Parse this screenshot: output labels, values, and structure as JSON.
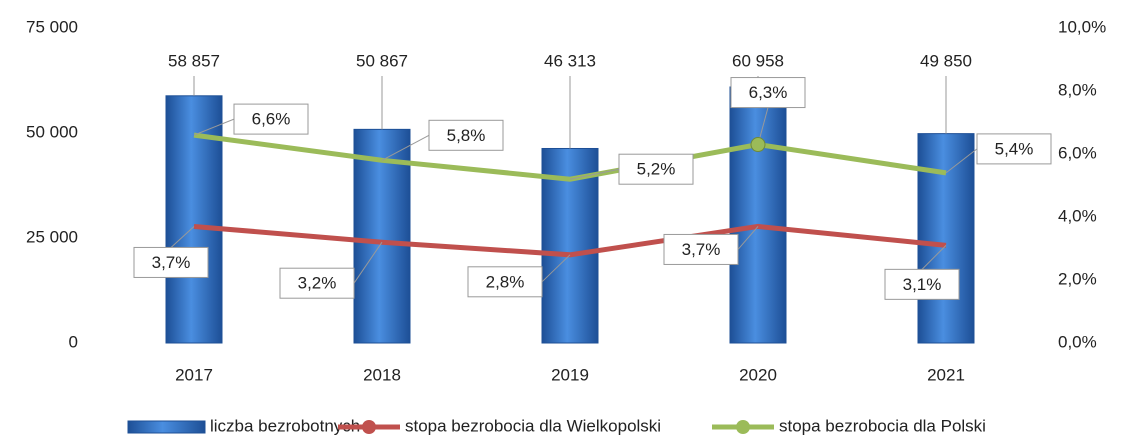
{
  "chart_data": {
    "type": "bar",
    "categories": [
      "2017",
      "2018",
      "2019",
      "2020",
      "2021"
    ],
    "ylim": [
      0,
      75000
    ],
    "yticks": [
      0,
      {
        "value": 25000,
        "label": "25 000"
      },
      {
        "value": 50000,
        "label": "50 000"
      },
      {
        "value": 75000,
        "label": "75 000"
      }
    ],
    "y2lim": [
      0,
      10
    ],
    "y2ticks": [
      {
        "value": 0,
        "label": "0,0%"
      },
      {
        "value": 2,
        "label": "2,0%"
      },
      {
        "value": 4,
        "label": "4,0%"
      },
      {
        "value": 6,
        "label": "6,0%"
      },
      {
        "value": 8,
        "label": "8,0%"
      },
      {
        "value": 10,
        "label": "10,0%"
      }
    ],
    "series": [
      {
        "name": "liczba bezrobotnych",
        "type": "bar",
        "color": "#2f6fbf",
        "values": [
          58857,
          50867,
          46313,
          60958,
          49850
        ],
        "value_labels": [
          "58 857",
          "50 867",
          "46 313",
          "60 958",
          "49 850"
        ]
      },
      {
        "name": "stopa bezrobocia dla Wielkopolski",
        "type": "line",
        "axis": "y2",
        "color": "#c0504d",
        "values": [
          3.7,
          3.2,
          2.8,
          3.7,
          3.1
        ],
        "value_labels": [
          "3,7%",
          "3,2%",
          "2,8%",
          "3,7%",
          "3,1%"
        ]
      },
      {
        "name": "stopa bezrobocia dla Polski",
        "type": "line",
        "axis": "y2",
        "color": "#9bbb59",
        "values": [
          6.6,
          5.8,
          5.2,
          6.3,
          5.4
        ],
        "value_labels": [
          "6,6%",
          "5,8%",
          "5,2%",
          "6,3%",
          "5,4%"
        ]
      }
    ]
  }
}
